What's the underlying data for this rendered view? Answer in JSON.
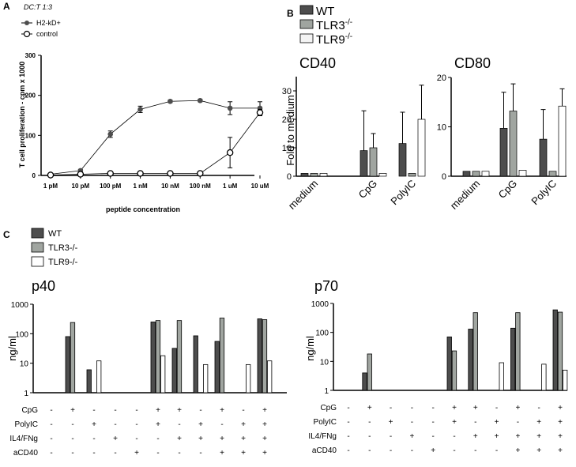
{
  "colors": {
    "wt": "#4d4d4d",
    "tlr3": "#a0a5a0",
    "tlr9": "#ffffff",
    "line": "#000000",
    "marker": "#4d4d4d"
  },
  "panel_a": {
    "letter": "A",
    "condition": "DC:T 1:3"
  },
  "panel_b": {
    "letter": "B"
  },
  "panel_c": {
    "letter": "C"
  },
  "legend_b": {
    "wt": "WT",
    "tlr3_base": "TLR3",
    "tlr3_sup": "-/-",
    "tlr9_base": "TLR9",
    "tlr9_sup": "-/-"
  },
  "legend_c": {
    "wt": "WT",
    "tlr3": "TLR3-/-",
    "tlr9": "TLR9-/-"
  },
  "row_labels": {
    "cpg": "CpG",
    "polyic": "PolyIC",
    "il4": "IL4/FNg",
    "acd40": "aCD40"
  },
  "chart_data": [
    {
      "id": "A",
      "type": "line",
      "ylabel": "T cell proliferation - cpm x 1000",
      "xlabel": "peptide concentration",
      "categories": [
        "1 pM",
        "10 pM",
        "100 pM",
        "1 nM",
        "10 nM",
        "100 nM",
        "1 uM",
        "10 uM"
      ],
      "ylim": [
        0,
        300
      ],
      "yticks": [
        "0",
        "100",
        "200",
        "300"
      ],
      "series": [
        {
          "name": "H2-kD+",
          "values": [
            3,
            12,
            103,
            165,
            185,
            187,
            168,
            168
          ],
          "errors": [
            2,
            3,
            8,
            8,
            3,
            3,
            16,
            16
          ]
        },
        {
          "name": "control",
          "values": [
            1,
            3,
            5,
            5,
            5,
            5,
            57,
            157
          ],
          "errors": [
            1,
            1,
            1,
            1,
            1,
            1,
            38,
            8
          ]
        }
      ]
    },
    {
      "id": "B-CD40",
      "type": "bar",
      "title": "CD40",
      "ylabel": "Fold to medium",
      "categories": [
        "medium",
        "CpG",
        "PolyIC"
      ],
      "ylim": [
        0,
        40
      ],
      "yticks": [
        "0",
        "10",
        "20",
        "30"
      ],
      "series": [
        {
          "name": "WT",
          "values": [
            1,
            9,
            11.5
          ],
          "errors": [
            0,
            14,
            11
          ]
        },
        {
          "name": "TLR3-/-",
          "values": [
            1,
            10,
            1
          ],
          "errors": [
            0,
            5,
            0
          ]
        },
        {
          "name": "TLR9-/-",
          "values": [
            1,
            1,
            20
          ],
          "errors": [
            0,
            0,
            12
          ]
        }
      ]
    },
    {
      "id": "B-CD80",
      "type": "bar",
      "title": "CD80",
      "categories": [
        "medium",
        "CpG",
        "PolyIC"
      ],
      "ylim": [
        0,
        20
      ],
      "yticks": [
        "0",
        "10",
        "20"
      ],
      "series": [
        {
          "name": "WT",
          "values": [
            1,
            9.7,
            7.5
          ],
          "errors": [
            0,
            7.3,
            6
          ]
        },
        {
          "name": "TLR3-/-",
          "values": [
            1,
            13.2,
            1
          ],
          "errors": [
            0,
            5.5,
            0
          ]
        },
        {
          "name": "TLR9-/-",
          "values": [
            1,
            1.2,
            14.2
          ],
          "errors": [
            0,
            0,
            3.5
          ]
        }
      ]
    },
    {
      "id": "C-p40",
      "type": "bar",
      "title": "p40",
      "ylabel": "ng/ml",
      "yscale": "log",
      "ylim": [
        1,
        1000
      ],
      "yticks": [
        "1",
        "10",
        "100",
        "1000"
      ],
      "groups": [
        {
          "cpg": "-",
          "polyic": "-",
          "il4": "-",
          "acd40": "-",
          "values": [
            null,
            null,
            null
          ]
        },
        {
          "cpg": "+",
          "polyic": "-",
          "il4": "-",
          "acd40": "-",
          "values": [
            80,
            240,
            null
          ]
        },
        {
          "cpg": "-",
          "polyic": "+",
          "il4": "-",
          "acd40": "-",
          "values": [
            6,
            null,
            12
          ]
        },
        {
          "cpg": "-",
          "polyic": "-",
          "il4": "+",
          "acd40": "-",
          "values": [
            null,
            null,
            null
          ]
        },
        {
          "cpg": "-",
          "polyic": "-",
          "il4": "-",
          "acd40": "+",
          "values": [
            null,
            null,
            null
          ]
        },
        {
          "cpg": "+",
          "polyic": "+",
          "il4": "-",
          "acd40": "-",
          "values": [
            250,
            280,
            18
          ]
        },
        {
          "cpg": "+",
          "polyic": "-",
          "il4": "+",
          "acd40": "-",
          "values": [
            32,
            280,
            null
          ]
        },
        {
          "cpg": "-",
          "polyic": "+",
          "il4": "+",
          "acd40": "-",
          "values": [
            85,
            null,
            9
          ]
        },
        {
          "cpg": "+",
          "polyic": "-",
          "il4": "+",
          "acd40": "+",
          "values": [
            55,
            340,
            null
          ]
        },
        {
          "cpg": "-",
          "polyic": "+",
          "il4": "+",
          "acd40": "+",
          "values": [
            null,
            null,
            9
          ]
        },
        {
          "cpg": "+",
          "polyic": "+",
          "il4": "+",
          "acd40": "+",
          "values": [
            320,
            300,
            12
          ]
        }
      ]
    },
    {
      "id": "C-p70",
      "type": "bar",
      "title": "p70",
      "ylabel": "ng/ml",
      "yscale": "log",
      "ylim": [
        1,
        1000
      ],
      "yticks": [
        "1",
        "10",
        "100",
        "1000"
      ],
      "groups": [
        {
          "cpg": "-",
          "polyic": "-",
          "il4": "-",
          "acd40": "-",
          "values": [
            null,
            null,
            null
          ]
        },
        {
          "cpg": "+",
          "polyic": "-",
          "il4": "-",
          "acd40": "-",
          "values": [
            4,
            18,
            null
          ]
        },
        {
          "cpg": "-",
          "polyic": "+",
          "il4": "-",
          "acd40": "-",
          "values": [
            null,
            null,
            null
          ]
        },
        {
          "cpg": "-",
          "polyic": "-",
          "il4": "+",
          "acd40": "-",
          "values": [
            null,
            null,
            null
          ]
        },
        {
          "cpg": "-",
          "polyic": "-",
          "il4": "-",
          "acd40": "+",
          "values": [
            null,
            null,
            null
          ]
        },
        {
          "cpg": "+",
          "polyic": "+",
          "il4": "-",
          "acd40": "-",
          "values": [
            70,
            23,
            null
          ]
        },
        {
          "cpg": "+",
          "polyic": "-",
          "il4": "+",
          "acd40": "-",
          "values": [
            130,
            480,
            null
          ]
        },
        {
          "cpg": "-",
          "polyic": "+",
          "il4": "+",
          "acd40": "-",
          "values": [
            null,
            null,
            9
          ]
        },
        {
          "cpg": "+",
          "polyic": "-",
          "il4": "+",
          "acd40": "+",
          "values": [
            140,
            480,
            null
          ]
        },
        {
          "cpg": "-",
          "polyic": "+",
          "il4": "+",
          "acd40": "+",
          "values": [
            null,
            null,
            8
          ]
        },
        {
          "cpg": "+",
          "polyic": "+",
          "il4": "+",
          "acd40": "+",
          "values": [
            600,
            500,
            5
          ]
        }
      ]
    }
  ]
}
